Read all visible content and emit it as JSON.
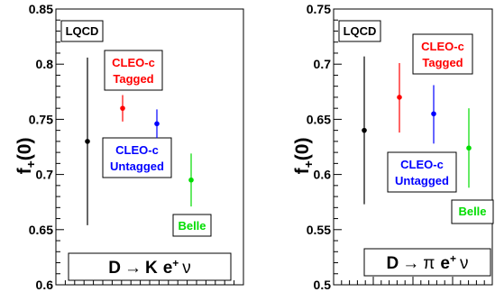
{
  "chart_data": [
    {
      "type": "scatter",
      "ylabel_main": "f",
      "ylabel_sub": "+",
      "ylabel_tail": "(0)",
      "ylim": [
        0.6,
        0.85
      ],
      "yticks": [
        "0.6",
        "0.65",
        "0.7",
        "0.75",
        "0.8",
        "0.85"
      ],
      "yvals": [
        0.6,
        0.65,
        0.7,
        0.75,
        0.8,
        0.85
      ],
      "grid": false,
      "legend": "none",
      "process": {
        "pre": "D",
        "arrow": "→",
        "meson": "K",
        "lep": "e",
        "sup": "+",
        "nu": "ν"
      },
      "labels": {
        "lqcd": "LQCD",
        "tagged": [
          "CLEO-c",
          "Tagged"
        ],
        "untagged": [
          "CLEO-c",
          "Untagged"
        ],
        "belle": "Belle"
      },
      "points": [
        {
          "group": "LQCD",
          "y": 0.73,
          "lo": 0.654,
          "hi": 0.806,
          "color": "#000000"
        },
        {
          "group": "CLEO-c Tagged",
          "y": 0.76,
          "lo": 0.748,
          "hi": 0.772,
          "color": "#ff0000"
        },
        {
          "group": "CLEO-c Untagged",
          "y": 0.746,
          "lo": 0.733,
          "hi": 0.759,
          "color": "#0000ff"
        },
        {
          "group": "Belle",
          "y": 0.695,
          "lo": 0.671,
          "hi": 0.719,
          "color": "#00dd00"
        }
      ]
    },
    {
      "type": "scatter",
      "ylabel_main": "f",
      "ylabel_sub": "+",
      "ylabel_tail": "(0)",
      "ylim": [
        0.5,
        0.75
      ],
      "yticks": [
        "0.5",
        "0.55",
        "0.6",
        "0.65",
        "0.7",
        "0.75"
      ],
      "yvals": [
        0.5,
        0.55,
        0.6,
        0.65,
        0.7,
        0.75
      ],
      "grid": false,
      "legend": "none",
      "process": {
        "pre": "D",
        "arrow": "→",
        "meson": "π",
        "lep": "e",
        "sup": "+",
        "nu": "ν"
      },
      "labels": {
        "lqcd": "LQCD",
        "tagged": [
          "CLEO-c",
          "Tagged"
        ],
        "untagged": [
          "CLEO-c",
          "Untagged"
        ],
        "belle": "Belle"
      },
      "points": [
        {
          "group": "LQCD",
          "y": 0.64,
          "lo": 0.573,
          "hi": 0.707,
          "color": "#000000"
        },
        {
          "group": "CLEO-c Tagged",
          "y": 0.67,
          "lo": 0.638,
          "hi": 0.701,
          "color": "#ff0000"
        },
        {
          "group": "CLEO-c Untagged",
          "y": 0.655,
          "lo": 0.628,
          "hi": 0.681,
          "color": "#0000ff"
        },
        {
          "group": "Belle",
          "y": 0.624,
          "lo": 0.588,
          "hi": 0.66,
          "color": "#00dd00"
        }
      ]
    }
  ]
}
